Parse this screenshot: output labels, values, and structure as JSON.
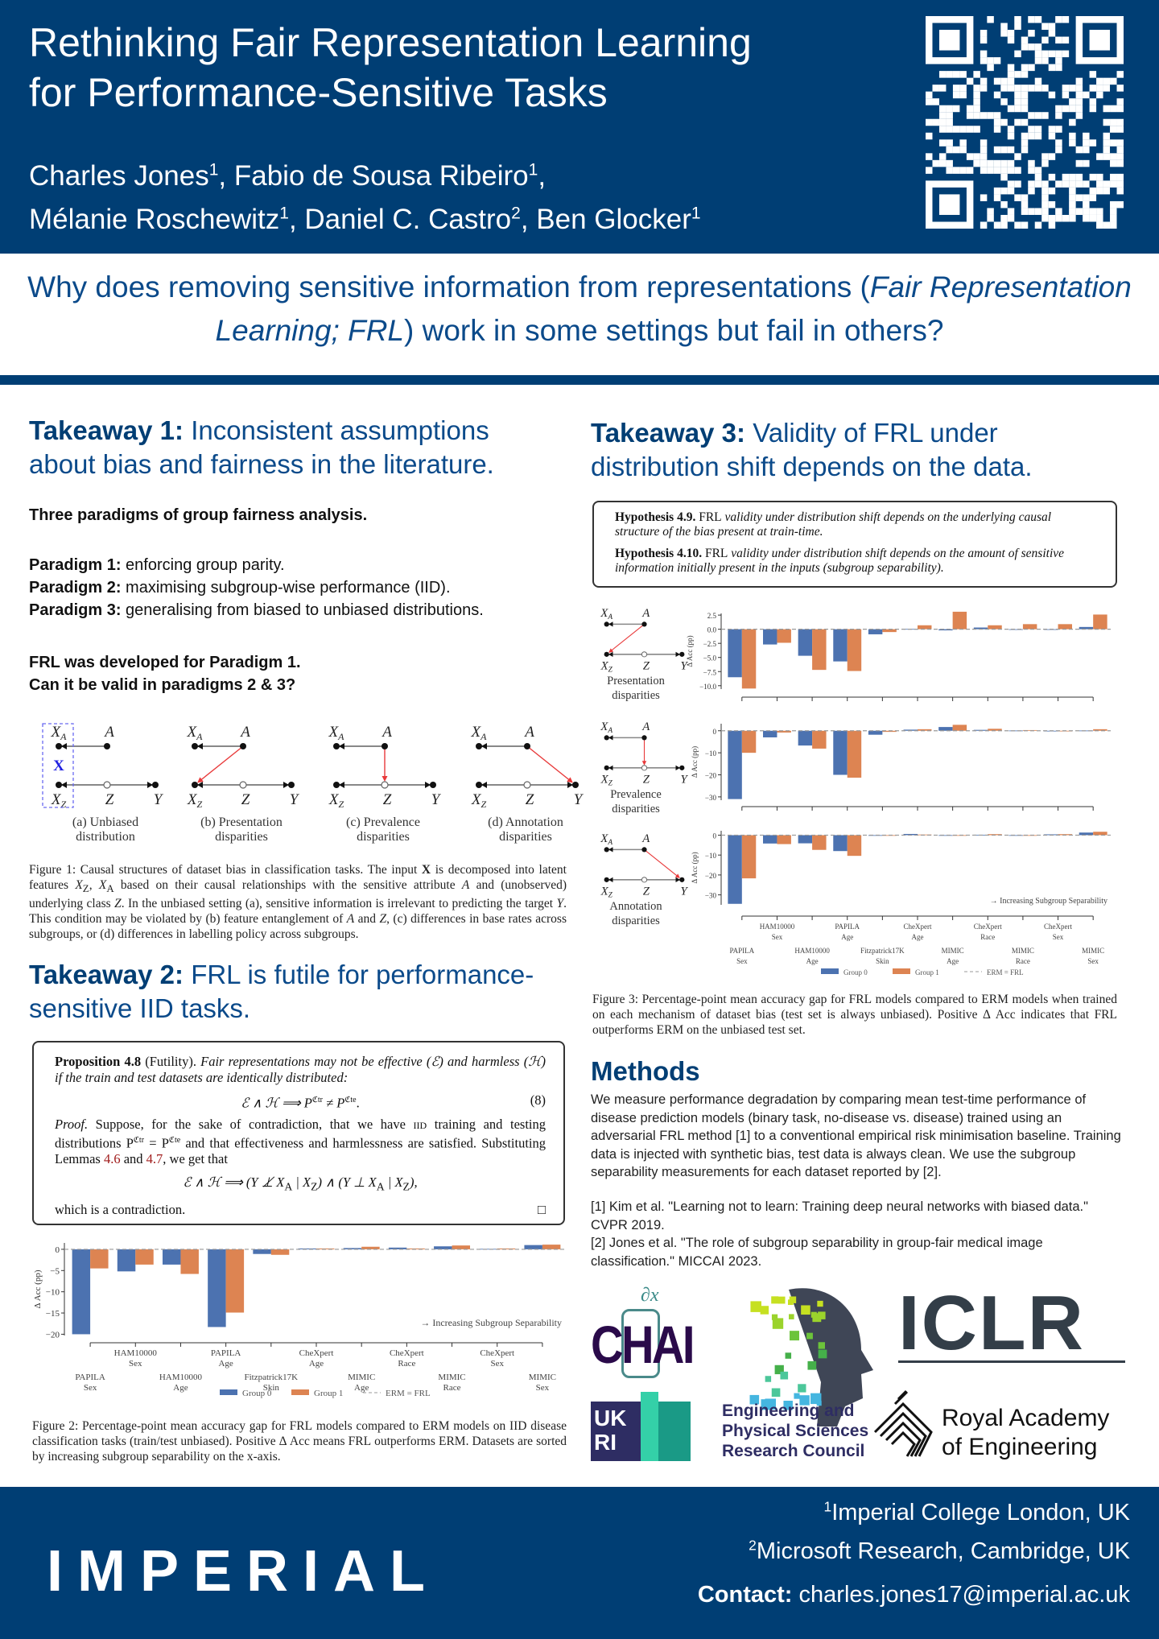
{
  "header": {
    "title_line1": "Rethinking Fair Representation Learning",
    "title_line2": "for Performance-Sensitive Tasks",
    "authors": [
      {
        "name": "Charles Jones",
        "aff": "1"
      },
      {
        "name": "Fabio de Sousa Ribeiro",
        "aff": "1"
      },
      {
        "name": "Mélanie Roschewitz",
        "aff": "1"
      },
      {
        "name": "Daniel C. Castro",
        "aff": "2"
      },
      {
        "name": "Ben Glocker",
        "aff": "1"
      }
    ]
  },
  "question": {
    "part1": "Why does removing sensitive information from representations (",
    "italic": "Fair Representation Learning; FRL",
    "part2": ") work in some settings but fail in others?"
  },
  "takeaway1": {
    "label": "Takeaway 1:",
    "text": "Inconsistent assumptions about bias and fairness in the literature.",
    "subtitle": "Three paradigms of group fairness analysis.",
    "paradigms": [
      {
        "label": "Paradigm 1:",
        "text": "enforcing group parity."
      },
      {
        "label": "Paradigm 2:",
        "text": "maximising subgroup-wise performance (IID)."
      },
      {
        "label": "Paradigm 3:",
        "text": "generalising from biased to unbiased distributions."
      }
    ],
    "question_line1": "FRL was developed for Paradigm 1.",
    "question_line2": "Can it be valid in paradigms 2 & 3?"
  },
  "figure1": {
    "nodes": {
      "xa": "X",
      "xa_sub": "A",
      "a": "A",
      "xz": "X",
      "xz_sub": "Z",
      "z": "Z",
      "y": "Y",
      "x_bold": "X"
    },
    "panels": [
      {
        "label_line1": "(a) Unbiased",
        "label_line2": "distribution"
      },
      {
        "label_line1": "(b) Presentation",
        "label_line2": "disparities"
      },
      {
        "label_line1": "(c) Prevalence",
        "label_line2": "disparities"
      },
      {
        "label_line1": "(d) Annotation",
        "label_line2": "disparities"
      }
    ],
    "caption": {
      "t1": "Figure 1: Causal structures of dataset bias in classification tasks. The input ",
      "x": "X",
      "t2": " is decomposed into latent features ",
      "xz": "X",
      "z": "Z",
      "comma": ", ",
      "xa": "X",
      "a": "A",
      "t3": " based on their causal relationships with the sensitive attribute ",
      "A": "A",
      "t4": " and (unobserved) underlying class ",
      "Z": "Z",
      "t5": ". In the unbiased setting (a), sensitive information is irrelevant to predicting the target ",
      "Y": "Y",
      "t6": ". This condition may be violated by (b) feature entanglement of ",
      "A2": "A",
      "and": " and ",
      "Z2": "Z",
      "t7": ", (c) differences in base rates across subgroups, or (d) differences in labelling policy across subgroups."
    }
  },
  "takeaway2": {
    "label": "Takeaway 2:",
    "text": "FRL is futile for performance-sensitive IID tasks.",
    "proposition": {
      "head": "Proposition 4.8",
      "name": " (Futility). ",
      "statement": "Fair representations may not be effective (ℰ) and harmless (ℋ) if the train and test datasets are identically distributed:",
      "eq1_a": "ℰ ∧ ℋ ⟹ P",
      "eq1_sup1": "ℭtr",
      "eq1_b": " ≠ P",
      "eq1_sup2": "ℭte",
      "eq1_c": ".",
      "eq_number": "(8)",
      "proof_label": "Proof.",
      "proof_1": " Suppose, for the sake of contradiction, that we have ",
      "proof_iid": "iid",
      "proof_2": " training and testing distributions P",
      "proof_sup1": "ℭtr",
      "proof_3": " = P",
      "proof_sup2": "ℭte",
      "proof_4": " and that effectiveness and harmlessness are satisfied. Substituting Lemmas ",
      "ref1": "4.6",
      "proof_and": " and ",
      "ref2": "4.7",
      "proof_5": ", we get that",
      "eq2": [
        "ℰ ∧ ℋ ⟹ (Y ⊥̸ X",
        "A",
        " | X",
        "Z",
        ") ∧ (Y ⊥ X",
        "A",
        " | X",
        "Z",
        "),"
      ],
      "conclusion": "which is a contradiction.",
      "qed": "□"
    },
    "caption": {
      "t1": "Figure 2: Percentage-point mean accuracy gap for ",
      "frl": "FRL",
      "t2": " models compared to ",
      "erm": "ERM",
      "t3": " models on ",
      "iid": "IID",
      "t4": " disease classification tasks (train/test unbiased). Positive Δ Acc means ",
      "frl2": "FRL",
      "t5": " outperforms ",
      "erm2": "ERM",
      "t6": ". Datasets are sorted by increasing subgroup separability on the x-axis."
    }
  },
  "takeaway3": {
    "label": "Takeaway 3:",
    "text": "Validity of FRL under distribution shift depends on the data.",
    "hyp1_head": "Hypothesis 4.9.",
    "hyp1_frl": "FRL",
    "hyp1_text": " validity under distribution shift depends on the underlying causal structure of the bias present at train-time.",
    "hyp2_head": "Hypothesis 4.10.",
    "hyp2_frl": "FRL",
    "hyp2_text": " validity under distribution shift depends on the amount of sensitive information initially present in the inputs (subgroup separability).",
    "panel_labels": [
      {
        "line1": "Presentation",
        "line2": "disparities"
      },
      {
        "line1": "Prevalence",
        "line2": "disparities"
      },
      {
        "line1": "Annotation",
        "line2": "disparities"
      }
    ],
    "caption": {
      "t1": "Figure 3: Percentage-point mean accuracy gap for ",
      "frl": "FRL",
      "t2": " models compared to ",
      "erm": "ERM",
      "t3": " models when trained on each mechanism of dataset bias (test set is always unbiased). Positive Δ Acc indicates that ",
      "frl2": "FRL",
      "t4": " outperforms ",
      "erm2": "ERM",
      "t5": " on the unbiased test set."
    }
  },
  "methods": {
    "heading": "Methods",
    "body": "We measure performance degradation by comparing mean test-time performance of disease prediction models (binary task, no-disease vs. disease) trained using an adversarial FRL method [1] to a conventional empirical risk minimisation baseline. Training data is injected with synthetic bias, test data is always clean. We use the subgroup separability measurements for each dataset reported by [2].",
    "ref1": "[1] Kim et al. \"Learning not to learn: Training deep neural networks with biased data.\" CVPR 2019.",
    "ref2": "[2] Jones et al. \"The role of subgroup separability in group-fair medical image classification.\" MICCAI 2023."
  },
  "logos": {
    "chai": "CHAI",
    "chai_top": "∂x",
    "iclr": "ICLR",
    "ukri": "UKRI",
    "epsrc_line1": "Engineering and",
    "epsrc_line2": "Physical Sciences",
    "epsrc_line3": "Research Council",
    "raeng_line1": "Royal Academy",
    "raeng_line2": "of Engineering"
  },
  "footer": {
    "imperial": "IMPERIAL",
    "aff1_num": "1",
    "aff1": "Imperial College London, UK",
    "aff2_num": "2",
    "aff2": "Microsoft Research, Cambridge, UK",
    "contact_label": "Contact:",
    "contact_email": "charles.jones17@imperial.ac.uk"
  },
  "colors": {
    "brand": "#003e74",
    "group0": "#4c72b0",
    "group1": "#dd8452",
    "bias_edge": "#e8393a"
  },
  "chart_data": [
    {
      "id": "fig2",
      "type": "bar",
      "title": "",
      "xlabel": "",
      "ylabel": "Δ Acc (pp)",
      "ylim": [
        -20.3,
        1.5
      ],
      "yticks": [
        0,
        -5,
        -10,
        -15,
        -20
      ],
      "tick_decimals": 0,
      "categories": [
        [
          "PAPILA",
          "Sex"
        ],
        [
          "HAM10000",
          "Sex"
        ],
        [
          "HAM10000",
          "Age"
        ],
        [
          "PAPILA",
          "Age"
        ],
        [
          "Fitzpatrick17K",
          "Skin"
        ],
        [
          "CheXpert",
          "Age"
        ],
        [
          "MIMIC",
          "Age"
        ],
        [
          "CheXpert",
          "Race"
        ],
        [
          "MIMIC",
          "Race"
        ],
        [
          "CheXpert",
          "Sex"
        ],
        [
          "MIMIC",
          "Sex"
        ]
      ],
      "series": [
        {
          "name": "Group 0",
          "values": [
            -20.0,
            -5.2,
            -3.6,
            -18.3,
            -1.1,
            0.2,
            0.3,
            0.4,
            0.7,
            0.1,
            1.0
          ]
        },
        {
          "name": "Group 1",
          "values": [
            -4.5,
            -3.6,
            -5.8,
            -14.9,
            -1.3,
            0.2,
            0.6,
            0.2,
            0.9,
            0.2,
            1.1
          ]
        }
      ],
      "reference_line": {
        "name": "ERM = FRL",
        "value": 0
      },
      "annotation": "→ Increasing Subgroup Separability",
      "legend_position": "bottom-center",
      "grid": false
    },
    {
      "id": "fig3-presentation",
      "type": "bar",
      "title": "Presentation disparities",
      "ylabel": "Δ Acc (pp)",
      "ylim": [
        -10.6,
        2.8
      ],
      "yticks": [
        2.5,
        0,
        -2.5,
        -5,
        -7.5,
        -10
      ],
      "tick_decimals": 1,
      "categories": [
        [
          "PAPILA",
          "Sex"
        ],
        [
          "HAM10000",
          "Sex"
        ],
        [
          "HAM10000",
          "Age"
        ],
        [
          "PAPILA",
          "Age"
        ],
        [
          "Fitzpatrick17K",
          "Skin"
        ],
        [
          "CheXpert",
          "Age"
        ],
        [
          "MIMIC",
          "Age"
        ],
        [
          "CheXpert",
          "Race"
        ],
        [
          "MIMIC",
          "Race"
        ],
        [
          "CheXpert",
          "Sex"
        ],
        [
          "MIMIC",
          "Sex"
        ]
      ],
      "series": [
        {
          "name": "Group 0",
          "values": [
            -8.5,
            -2.7,
            -4.7,
            -5.7,
            -0.9,
            0.05,
            -0.2,
            0.3,
            -0.1,
            0.0,
            0.4
          ]
        },
        {
          "name": "Group 1",
          "values": [
            -10.5,
            -2.4,
            -7.2,
            -7.4,
            -0.5,
            0.7,
            3.1,
            0.7,
            0.9,
            0.9,
            2.6
          ]
        }
      ],
      "reference_line": {
        "name": "ERM = FRL",
        "value": 0
      }
    },
    {
      "id": "fig3-prevalence",
      "type": "bar",
      "title": "Prevalence disparities",
      "ylabel": "Δ Acc (pp)",
      "ylim": [
        -31.5,
        3.2
      ],
      "yticks": [
        0,
        -10,
        -20,
        -30
      ],
      "tick_decimals": 0,
      "categories": [
        [
          "PAPILA",
          "Sex"
        ],
        [
          "HAM10000",
          "Sex"
        ],
        [
          "HAM10000",
          "Age"
        ],
        [
          "PAPILA",
          "Age"
        ],
        [
          "Fitzpatrick17K",
          "Skin"
        ],
        [
          "CheXpert",
          "Age"
        ],
        [
          "MIMIC",
          "Age"
        ],
        [
          "CheXpert",
          "Race"
        ],
        [
          "MIMIC",
          "Race"
        ],
        [
          "CheXpert",
          "Sex"
        ],
        [
          "MIMIC",
          "Sex"
        ]
      ],
      "series": [
        {
          "name": "Group 0",
          "values": [
            -31.0,
            -3.0,
            -6.7,
            -20.0,
            -1.8,
            0.5,
            1.7,
            0.4,
            0.1,
            0.0,
            0.1
          ]
        },
        {
          "name": "Group 1",
          "values": [
            -10.0,
            -0.8,
            -8.1,
            -21.3,
            -0.5,
            0.7,
            2.7,
            0.9,
            0.3,
            0.0,
            0.7
          ]
        }
      ],
      "reference_line": {
        "name": "ERM = FRL",
        "value": 0
      }
    },
    {
      "id": "fig3-annotation",
      "type": "bar",
      "title": "Annotation disparities",
      "ylabel": "Δ Acc (pp)",
      "ylim": [
        -35,
        2.2
      ],
      "yticks": [
        0,
        -10,
        -20,
        -30
      ],
      "tick_decimals": 0,
      "categories": [
        [
          "PAPILA",
          "Sex"
        ],
        [
          "HAM10000",
          "Sex"
        ],
        [
          "HAM10000",
          "Age"
        ],
        [
          "PAPILA",
          "Age"
        ],
        [
          "Fitzpatrick17K",
          "Skin"
        ],
        [
          "CheXpert",
          "Age"
        ],
        [
          "MIMIC",
          "Age"
        ],
        [
          "CheXpert",
          "Race"
        ],
        [
          "MIMIC",
          "Race"
        ],
        [
          "CheXpert",
          "Sex"
        ],
        [
          "MIMIC",
          "Sex"
        ]
      ],
      "series": [
        {
          "name": "Group 0",
          "values": [
            -34.5,
            -4.2,
            -4.1,
            -8.0,
            -0.3,
            0.6,
            -0.2,
            0.2,
            -0.2,
            0.4,
            1.3
          ]
        },
        {
          "name": "Group 1",
          "values": [
            -21.7,
            -4.5,
            -7.4,
            -10.4,
            -0.2,
            0.3,
            -0.2,
            0.5,
            -0.1,
            0.5,
            1.7
          ]
        }
      ],
      "reference_line": {
        "name": "ERM = FRL",
        "value": 0
      },
      "annotation": "→ Increasing Subgroup Separability",
      "legend": [
        "Group 0",
        "Group 1",
        "ERM = FRL"
      ],
      "legend_position": "bottom-center"
    }
  ]
}
